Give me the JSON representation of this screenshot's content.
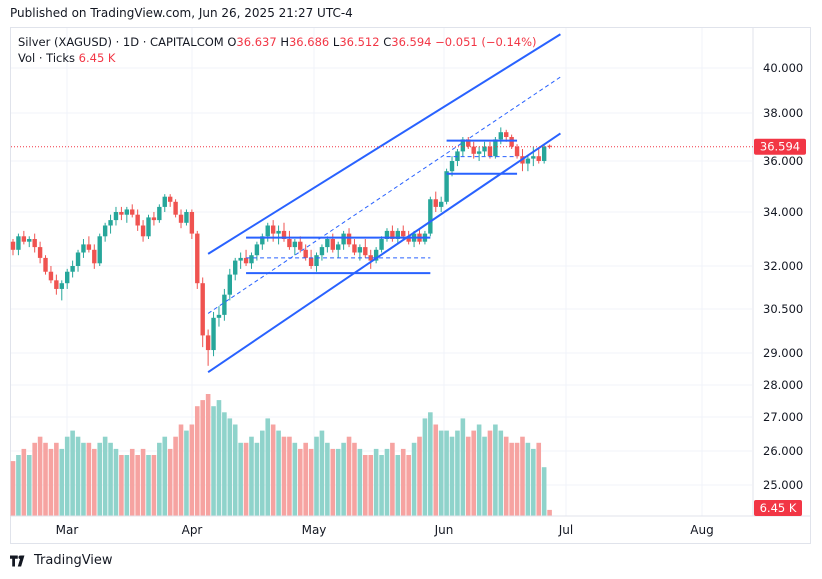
{
  "header": {
    "published": "Published on TradingView.com, Jun 26, 2025 21:27 UTC-4"
  },
  "legend": {
    "symbol": "Silver (XAGUSD) · 1D · CAPITALCOM",
    "o_label": "O",
    "o_value": "36.637",
    "h_label": "H",
    "h_value": "36.686",
    "l_label": "L",
    "l_value": "36.512",
    "c_label": "C",
    "c_value": "36.594",
    "change": "−0.051 (−0.14%)",
    "vol_label": "Vol · Ticks",
    "vol_value": "6.45 K"
  },
  "footer": {
    "brand": "TradingView"
  },
  "colors": {
    "up": "#26a69a",
    "down": "#ef5350",
    "vol_up": "#8fd3cb",
    "vol_down": "#f6a3a1",
    "drawing": "#2962ff",
    "price_tag": "#f23645"
  },
  "chart_data": {
    "type": "candlestick",
    "x_ticks": [
      "Mar",
      "Apr",
      "May",
      "Jun",
      "Jul",
      "Aug"
    ],
    "y_ticks": [
      "40.000",
      "38.000",
      "36.000",
      "34.000",
      "32.000",
      "30.500",
      "29.000",
      "28.000",
      "27.000",
      "26.000",
      "25.000"
    ],
    "y_tick_values": [
      40,
      38,
      36,
      34,
      32,
      30.5,
      29,
      28,
      27,
      26,
      25
    ],
    "last_price": 36.594,
    "last_price_label": "36.594",
    "volume_label": "6.45 K",
    "candles": [
      [
        32.9,
        33.0,
        32.4,
        32.6
      ],
      [
        32.6,
        33.2,
        32.4,
        33.1
      ],
      [
        33.1,
        33.3,
        32.8,
        32.9
      ],
      [
        32.9,
        33.1,
        32.7,
        33.0
      ],
      [
        33.0,
        33.2,
        32.5,
        32.7
      ],
      [
        32.7,
        32.9,
        32.1,
        32.3
      ],
      [
        32.3,
        32.4,
        31.7,
        31.8
      ],
      [
        31.8,
        32.0,
        31.4,
        31.5
      ],
      [
        31.5,
        31.7,
        31.0,
        31.2
      ],
      [
        31.2,
        31.5,
        30.8,
        31.4
      ],
      [
        31.4,
        31.9,
        31.2,
        31.8
      ],
      [
        31.8,
        32.2,
        31.6,
        32.0
      ],
      [
        32.0,
        32.6,
        31.8,
        32.5
      ],
      [
        32.5,
        33.0,
        32.3,
        32.8
      ],
      [
        32.8,
        33.1,
        32.5,
        32.6
      ],
      [
        32.6,
        32.8,
        31.9,
        32.1
      ],
      [
        32.1,
        33.2,
        32.0,
        33.1
      ],
      [
        33.1,
        33.6,
        32.9,
        33.5
      ],
      [
        33.5,
        33.9,
        33.2,
        33.7
      ],
      [
        33.7,
        34.2,
        33.5,
        34.0
      ],
      [
        34.0,
        34.2,
        33.7,
        33.9
      ],
      [
        33.9,
        34.2,
        33.6,
        34.1
      ],
      [
        34.1,
        34.3,
        33.8,
        33.9
      ],
      [
        33.9,
        34.1,
        33.3,
        33.5
      ],
      [
        33.5,
        33.7,
        32.9,
        33.1
      ],
      [
        33.1,
        33.9,
        33.0,
        33.8
      ],
      [
        33.8,
        34.0,
        33.5,
        33.7
      ],
      [
        33.7,
        34.3,
        33.6,
        34.2
      ],
      [
        34.2,
        34.7,
        34.0,
        34.6
      ],
      [
        34.6,
        34.7,
        34.2,
        34.4
      ],
      [
        34.4,
        34.5,
        33.8,
        33.9
      ],
      [
        33.9,
        34.1,
        33.4,
        33.6
      ],
      [
        33.6,
        34.1,
        33.5,
        34.0
      ],
      [
        34.0,
        34.1,
        33.0,
        33.2
      ],
      [
        33.2,
        33.3,
        31.2,
        31.4
      ],
      [
        31.4,
        31.6,
        29.2,
        29.6
      ],
      [
        29.6,
        29.8,
        28.6,
        29.1
      ],
      [
        29.1,
        30.4,
        28.9,
        30.2
      ],
      [
        30.2,
        30.6,
        29.9,
        30.3
      ],
      [
        30.3,
        31.2,
        30.1,
        31.0
      ],
      [
        31.0,
        31.9,
        30.8,
        31.7
      ],
      [
        31.7,
        32.3,
        31.5,
        32.2
      ],
      [
        32.2,
        32.5,
        31.9,
        32.3
      ],
      [
        32.3,
        32.6,
        32.0,
        32.1
      ],
      [
        32.1,
        32.5,
        31.9,
        32.4
      ],
      [
        32.4,
        32.9,
        32.2,
        32.8
      ],
      [
        32.8,
        33.2,
        32.6,
        33.1
      ],
      [
        33.1,
        33.6,
        32.9,
        33.5
      ],
      [
        33.5,
        33.7,
        32.9,
        33.2
      ],
      [
        33.2,
        33.5,
        32.8,
        33.3
      ],
      [
        33.3,
        33.6,
        32.9,
        33.0
      ],
      [
        33.0,
        33.3,
        32.6,
        32.7
      ],
      [
        32.7,
        33.0,
        32.4,
        32.9
      ],
      [
        32.9,
        33.1,
        32.5,
        32.6
      ],
      [
        32.6,
        32.8,
        32.2,
        32.3
      ],
      [
        32.3,
        32.6,
        31.9,
        32.0
      ],
      [
        32.0,
        32.5,
        31.8,
        32.4
      ],
      [
        32.4,
        32.8,
        32.2,
        32.7
      ],
      [
        32.7,
        33.1,
        32.5,
        33.0
      ],
      [
        33.0,
        33.2,
        32.5,
        32.6
      ],
      [
        32.6,
        32.9,
        32.3,
        32.8
      ],
      [
        32.8,
        33.3,
        32.6,
        33.2
      ],
      [
        33.2,
        33.4,
        32.7,
        32.8
      ],
      [
        32.8,
        33.0,
        32.4,
        32.5
      ],
      [
        32.5,
        32.8,
        32.2,
        32.7
      ],
      [
        32.7,
        33.0,
        32.3,
        32.4
      ],
      [
        32.4,
        32.6,
        31.9,
        32.2
      ],
      [
        32.2,
        32.7,
        32.1,
        32.6
      ],
      [
        32.6,
        33.1,
        32.5,
        33.0
      ],
      [
        33.0,
        33.4,
        32.9,
        33.3
      ],
      [
        33.3,
        33.5,
        32.9,
        33.0
      ],
      [
        33.0,
        33.4,
        32.8,
        33.3
      ],
      [
        33.3,
        33.5,
        33.0,
        33.1
      ],
      [
        33.1,
        33.3,
        32.8,
        32.9
      ],
      [
        32.9,
        33.3,
        32.7,
        33.2
      ],
      [
        33.2,
        33.4,
        32.8,
        32.9
      ],
      [
        32.9,
        33.3,
        32.8,
        33.2
      ],
      [
        33.2,
        34.6,
        33.1,
        34.5
      ],
      [
        34.5,
        34.8,
        34.0,
        34.2
      ],
      [
        34.2,
        34.6,
        34.0,
        34.4
      ],
      [
        34.4,
        35.7,
        34.3,
        35.6
      ],
      [
        35.6,
        36.2,
        35.4,
        36.0
      ],
      [
        36.0,
        36.5,
        35.8,
        36.4
      ],
      [
        36.4,
        37.0,
        36.2,
        36.9
      ],
      [
        36.9,
        37.0,
        36.5,
        36.6
      ],
      [
        36.6,
        36.8,
        36.1,
        36.3
      ],
      [
        36.3,
        36.6,
        36.0,
        36.4
      ],
      [
        36.4,
        36.8,
        36.2,
        36.6
      ],
      [
        36.6,
        36.8,
        36.1,
        36.2
      ],
      [
        36.2,
        37.0,
        36.1,
        36.9
      ],
      [
        36.9,
        37.4,
        36.7,
        37.2
      ],
      [
        37.2,
        37.3,
        36.8,
        37.0
      ],
      [
        37.0,
        37.1,
        36.5,
        36.6
      ],
      [
        36.6,
        36.7,
        36.1,
        36.2
      ],
      [
        36.2,
        36.5,
        35.6,
        35.9
      ],
      [
        35.9,
        36.2,
        35.6,
        36.1
      ],
      [
        36.1,
        36.6,
        35.8,
        36.2
      ],
      [
        36.2,
        36.5,
        35.9,
        36.0
      ],
      [
        36.0,
        36.7,
        35.9,
        36.6
      ],
      [
        36.637,
        36.686,
        36.512,
        36.594
      ]
    ],
    "volume": [
      9,
      10,
      11,
      10,
      12,
      13,
      12,
      11,
      12,
      11,
      13,
      14,
      13,
      12,
      12,
      11,
      12,
      13,
      12,
      11,
      10,
      10,
      11,
      10,
      11,
      10,
      10,
      12,
      13,
      11,
      13,
      15,
      14,
      15,
      18,
      19,
      20,
      18,
      19,
      17,
      16,
      15,
      12,
      12,
      13,
      12,
      14,
      16,
      15,
      14,
      13,
      13,
      12,
      11,
      12,
      11,
      13,
      14,
      12,
      11,
      11,
      12,
      13,
      12,
      11,
      10,
      10,
      11,
      10,
      11,
      12,
      10,
      11,
      10,
      12,
      13,
      16,
      17,
      15,
      14,
      14,
      13,
      14,
      16,
      13,
      14,
      15,
      13,
      14,
      15,
      14,
      13,
      12,
      12,
      13,
      12,
      11,
      12,
      8,
      1
    ],
    "annotations": {
      "channel": {
        "upper": [
          [
            36,
            32.45
          ],
          [
            101,
            41.5
          ]
        ],
        "lower": [
          [
            36,
            28.4
          ],
          [
            101,
            37.15
          ]
        ],
        "mid": [
          [
            36,
            30.35
          ],
          [
            101,
            39.6
          ]
        ]
      },
      "range_box_1": {
        "top": 33.05,
        "bottom": 31.75,
        "mid": 32.3,
        "from": 43,
        "to": 77
      },
      "range_box_2": {
        "top": 36.85,
        "bottom": 35.5,
        "mid": 36.18,
        "from": 80,
        "to": 93
      }
    }
  }
}
